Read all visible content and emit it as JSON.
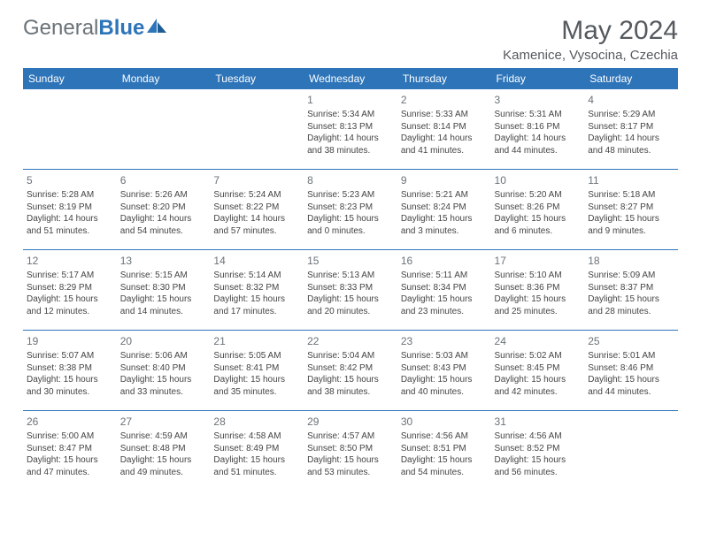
{
  "brand": {
    "part1": "General",
    "part2": "Blue"
  },
  "title": "May 2024",
  "location": "Kamenice, Vysocina, Czechia",
  "colors": {
    "header_bg": "#2d74b9",
    "brand_blue": "#2d74b9",
    "brand_gray": "#6a7278"
  },
  "weekdays": [
    "Sunday",
    "Monday",
    "Tuesday",
    "Wednesday",
    "Thursday",
    "Friday",
    "Saturday"
  ],
  "weeks": [
    [
      null,
      null,
      null,
      {
        "d": "1",
        "sr": "Sunrise: 5:34 AM",
        "ss": "Sunset: 8:13 PM",
        "dl1": "Daylight: 14 hours",
        "dl2": "and 38 minutes."
      },
      {
        "d": "2",
        "sr": "Sunrise: 5:33 AM",
        "ss": "Sunset: 8:14 PM",
        "dl1": "Daylight: 14 hours",
        "dl2": "and 41 minutes."
      },
      {
        "d": "3",
        "sr": "Sunrise: 5:31 AM",
        "ss": "Sunset: 8:16 PM",
        "dl1": "Daylight: 14 hours",
        "dl2": "and 44 minutes."
      },
      {
        "d": "4",
        "sr": "Sunrise: 5:29 AM",
        "ss": "Sunset: 8:17 PM",
        "dl1": "Daylight: 14 hours",
        "dl2": "and 48 minutes."
      }
    ],
    [
      {
        "d": "5",
        "sr": "Sunrise: 5:28 AM",
        "ss": "Sunset: 8:19 PM",
        "dl1": "Daylight: 14 hours",
        "dl2": "and 51 minutes."
      },
      {
        "d": "6",
        "sr": "Sunrise: 5:26 AM",
        "ss": "Sunset: 8:20 PM",
        "dl1": "Daylight: 14 hours",
        "dl2": "and 54 minutes."
      },
      {
        "d": "7",
        "sr": "Sunrise: 5:24 AM",
        "ss": "Sunset: 8:22 PM",
        "dl1": "Daylight: 14 hours",
        "dl2": "and 57 minutes."
      },
      {
        "d": "8",
        "sr": "Sunrise: 5:23 AM",
        "ss": "Sunset: 8:23 PM",
        "dl1": "Daylight: 15 hours",
        "dl2": "and 0 minutes."
      },
      {
        "d": "9",
        "sr": "Sunrise: 5:21 AM",
        "ss": "Sunset: 8:24 PM",
        "dl1": "Daylight: 15 hours",
        "dl2": "and 3 minutes."
      },
      {
        "d": "10",
        "sr": "Sunrise: 5:20 AM",
        "ss": "Sunset: 8:26 PM",
        "dl1": "Daylight: 15 hours",
        "dl2": "and 6 minutes."
      },
      {
        "d": "11",
        "sr": "Sunrise: 5:18 AM",
        "ss": "Sunset: 8:27 PM",
        "dl1": "Daylight: 15 hours",
        "dl2": "and 9 minutes."
      }
    ],
    [
      {
        "d": "12",
        "sr": "Sunrise: 5:17 AM",
        "ss": "Sunset: 8:29 PM",
        "dl1": "Daylight: 15 hours",
        "dl2": "and 12 minutes."
      },
      {
        "d": "13",
        "sr": "Sunrise: 5:15 AM",
        "ss": "Sunset: 8:30 PM",
        "dl1": "Daylight: 15 hours",
        "dl2": "and 14 minutes."
      },
      {
        "d": "14",
        "sr": "Sunrise: 5:14 AM",
        "ss": "Sunset: 8:32 PM",
        "dl1": "Daylight: 15 hours",
        "dl2": "and 17 minutes."
      },
      {
        "d": "15",
        "sr": "Sunrise: 5:13 AM",
        "ss": "Sunset: 8:33 PM",
        "dl1": "Daylight: 15 hours",
        "dl2": "and 20 minutes."
      },
      {
        "d": "16",
        "sr": "Sunrise: 5:11 AM",
        "ss": "Sunset: 8:34 PM",
        "dl1": "Daylight: 15 hours",
        "dl2": "and 23 minutes."
      },
      {
        "d": "17",
        "sr": "Sunrise: 5:10 AM",
        "ss": "Sunset: 8:36 PM",
        "dl1": "Daylight: 15 hours",
        "dl2": "and 25 minutes."
      },
      {
        "d": "18",
        "sr": "Sunrise: 5:09 AM",
        "ss": "Sunset: 8:37 PM",
        "dl1": "Daylight: 15 hours",
        "dl2": "and 28 minutes."
      }
    ],
    [
      {
        "d": "19",
        "sr": "Sunrise: 5:07 AM",
        "ss": "Sunset: 8:38 PM",
        "dl1": "Daylight: 15 hours",
        "dl2": "and 30 minutes."
      },
      {
        "d": "20",
        "sr": "Sunrise: 5:06 AM",
        "ss": "Sunset: 8:40 PM",
        "dl1": "Daylight: 15 hours",
        "dl2": "and 33 minutes."
      },
      {
        "d": "21",
        "sr": "Sunrise: 5:05 AM",
        "ss": "Sunset: 8:41 PM",
        "dl1": "Daylight: 15 hours",
        "dl2": "and 35 minutes."
      },
      {
        "d": "22",
        "sr": "Sunrise: 5:04 AM",
        "ss": "Sunset: 8:42 PM",
        "dl1": "Daylight: 15 hours",
        "dl2": "and 38 minutes."
      },
      {
        "d": "23",
        "sr": "Sunrise: 5:03 AM",
        "ss": "Sunset: 8:43 PM",
        "dl1": "Daylight: 15 hours",
        "dl2": "and 40 minutes."
      },
      {
        "d": "24",
        "sr": "Sunrise: 5:02 AM",
        "ss": "Sunset: 8:45 PM",
        "dl1": "Daylight: 15 hours",
        "dl2": "and 42 minutes."
      },
      {
        "d": "25",
        "sr": "Sunrise: 5:01 AM",
        "ss": "Sunset: 8:46 PM",
        "dl1": "Daylight: 15 hours",
        "dl2": "and 44 minutes."
      }
    ],
    [
      {
        "d": "26",
        "sr": "Sunrise: 5:00 AM",
        "ss": "Sunset: 8:47 PM",
        "dl1": "Daylight: 15 hours",
        "dl2": "and 47 minutes."
      },
      {
        "d": "27",
        "sr": "Sunrise: 4:59 AM",
        "ss": "Sunset: 8:48 PM",
        "dl1": "Daylight: 15 hours",
        "dl2": "and 49 minutes."
      },
      {
        "d": "28",
        "sr": "Sunrise: 4:58 AM",
        "ss": "Sunset: 8:49 PM",
        "dl1": "Daylight: 15 hours",
        "dl2": "and 51 minutes."
      },
      {
        "d": "29",
        "sr": "Sunrise: 4:57 AM",
        "ss": "Sunset: 8:50 PM",
        "dl1": "Daylight: 15 hours",
        "dl2": "and 53 minutes."
      },
      {
        "d": "30",
        "sr": "Sunrise: 4:56 AM",
        "ss": "Sunset: 8:51 PM",
        "dl1": "Daylight: 15 hours",
        "dl2": "and 54 minutes."
      },
      {
        "d": "31",
        "sr": "Sunrise: 4:56 AM",
        "ss": "Sunset: 8:52 PM",
        "dl1": "Daylight: 15 hours",
        "dl2": "and 56 minutes."
      },
      null
    ]
  ]
}
